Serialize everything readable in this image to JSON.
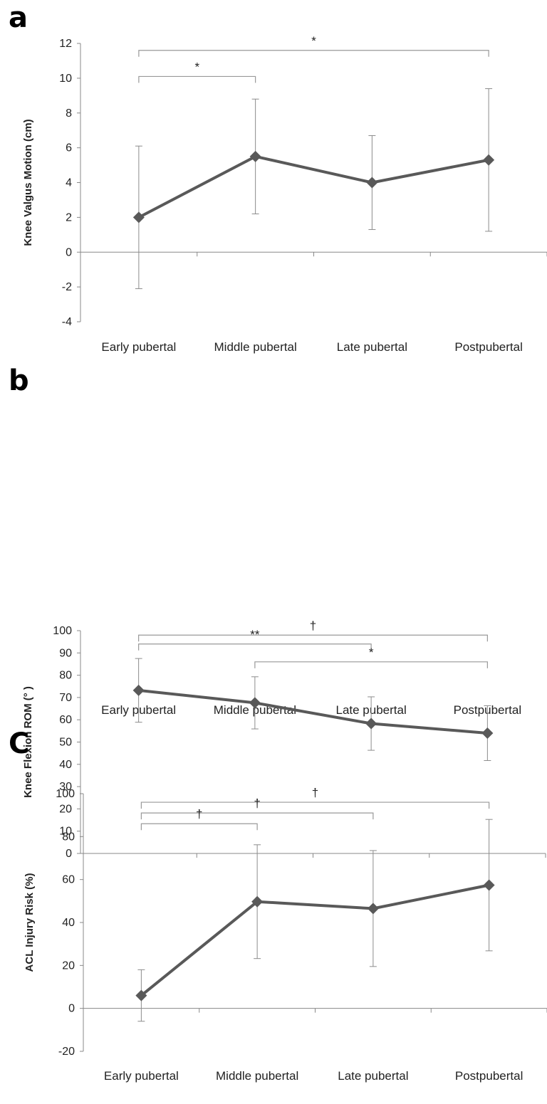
{
  "chart_data": [
    {
      "panel": "a",
      "type": "line",
      "categories": [
        "Early pubertal",
        "Middle pubertal",
        "Late pubertal",
        "Postpubertal"
      ],
      "series": [
        {
          "values": [
            2.0,
            5.5,
            4.0,
            5.3
          ],
          "error": [
            4.1,
            3.3,
            2.7,
            4.1
          ]
        }
      ],
      "ylabel": "Knee Valgus Motion (cm)",
      "ylim": [
        -4,
        12
      ],
      "yticks": [
        -4,
        -2,
        0,
        2,
        4,
        6,
        8,
        10,
        12
      ],
      "significance": [
        {
          "from": 0,
          "to": 1,
          "label": "*",
          "level": 10.1
        },
        {
          "from": 0,
          "to": 3,
          "label": "*",
          "level": 11.6
        }
      ]
    },
    {
      "panel": "b",
      "type": "line",
      "categories": [
        "Early pubertal",
        "Middle pubertal",
        "Late pubertal",
        "Postpubertal"
      ],
      "series": [
        {
          "values": [
            73.2,
            67.6,
            58.3,
            54.0
          ],
          "error": [
            14.3,
            11.7,
            12.0,
            12.3
          ]
        }
      ],
      "ylabel": "Knee Flexion ROM (° )",
      "ylim": [
        0,
        100
      ],
      "yticks": [
        0,
        10,
        20,
        30,
        40,
        50,
        60,
        70,
        80,
        90,
        100
      ],
      "significance": [
        {
          "from": 0,
          "to": 3,
          "label": "†",
          "level": 98
        },
        {
          "from": 0,
          "to": 2,
          "label": "**",
          "level": 94
        },
        {
          "from": 1,
          "to": 3,
          "label": "*",
          "level": 86
        }
      ]
    },
    {
      "panel": "C",
      "type": "line",
      "categories": [
        "Early pubertal",
        "Middle pubertal",
        "Late pubertal",
        "Postpubertal"
      ],
      "series": [
        {
          "values": [
            6.0,
            49.7,
            46.5,
            57.4
          ],
          "error": [
            12.0,
            26.5,
            27.0,
            30.6
          ]
        }
      ],
      "ylabel": "ACL Injury Risk (%)",
      "ylim": [
        -20,
        100
      ],
      "yticks": [
        -20,
        0,
        20,
        40,
        60,
        80,
        100
      ],
      "significance": [
        {
          "from": 0,
          "to": 3,
          "label": "†",
          "level": 96
        },
        {
          "from": 0,
          "to": 2,
          "label": "†",
          "level": 91
        },
        {
          "from": 0,
          "to": 1,
          "label": "†",
          "level": 86
        }
      ]
    }
  ]
}
